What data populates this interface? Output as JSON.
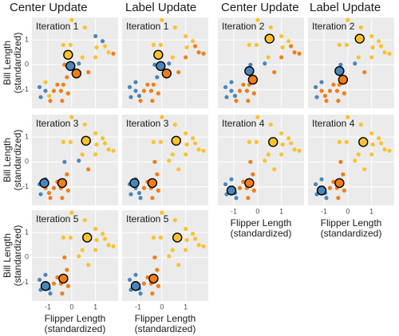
{
  "chart_data": {
    "type": "scatter",
    "column_titles": [
      "Center Update",
      "Label Update",
      "Center Update",
      "Label Update"
    ],
    "x_label": [
      "Flipper Length",
      "(standardized)"
    ],
    "y_label": [
      "Bill Length",
      "(standardized)"
    ],
    "xlim": [
      -1.67,
      1.95
    ],
    "ylim": [
      -1.75,
      1.9
    ],
    "xticks": [
      -1,
      0,
      1
    ],
    "yticks": [
      -1,
      0,
      1
    ],
    "grid": true,
    "colors": [
      "#4b86b9",
      "#ef7f1a",
      "#f9c22e"
    ],
    "points": {
      "x": [
        0.0,
        0.55,
        1.0,
        1.3,
        1.05,
        1.4,
        1.55,
        1.75,
        1.0,
        0.45,
        -0.35,
        -0.05,
        0.7,
        0.3,
        -0.3,
        -0.6,
        -0.35,
        -0.75,
        -0.45,
        -0.15,
        -0.9,
        -0.4,
        -0.2,
        -1.35,
        -1.1,
        -1.1,
        -1.3,
        -0.95
      ],
      "y": [
        1.8,
        1.5,
        1.15,
        0.95,
        0.7,
        0.75,
        0.5,
        0.45,
        0.3,
        0.3,
        0.8,
        0.8,
        -0.3,
        0.05,
        0.0,
        -0.8,
        -0.8,
        -1.05,
        -1.05,
        -1.15,
        -1.45,
        -1.45,
        -0.5,
        -0.9,
        -0.7,
        -1.05,
        -1.3,
        -1.25
      ]
    },
    "panels": [
      {
        "title": "Iteration 1",
        "labels": [
          2,
          2,
          0,
          0,
          2,
          2,
          2,
          1,
          2,
          2,
          2,
          2,
          1,
          0,
          1,
          1,
          1,
          1,
          1,
          1,
          1,
          1,
          1,
          0,
          2,
          0,
          0,
          2
        ],
        "centers": [
          [
            -0.05,
            -0.05
          ],
          [
            0.2,
            -0.35
          ],
          [
            -0.15,
            0.4
          ]
        ]
      },
      {
        "title": "Iteration 1",
        "labels": [
          2,
          2,
          2,
          2,
          2,
          1,
          1,
          1,
          1,
          2,
          2,
          2,
          1,
          0,
          0,
          1,
          1,
          1,
          1,
          1,
          1,
          1,
          0,
          0,
          0,
          0,
          0,
          0
        ],
        "centers": [
          [
            -0.05,
            -0.05
          ],
          [
            0.2,
            -0.35
          ],
          [
            -0.15,
            0.4
          ]
        ]
      },
      {
        "title": "Iteration 2",
        "labels": [
          2,
          2,
          2,
          2,
          2,
          1,
          1,
          1,
          1,
          2,
          2,
          2,
          1,
          0,
          0,
          1,
          1,
          1,
          1,
          1,
          1,
          1,
          0,
          0,
          0,
          0,
          0,
          0
        ],
        "centers": [
          [
            -0.35,
            -0.25
          ],
          [
            -0.2,
            -0.6
          ],
          [
            0.5,
            1.05
          ]
        ]
      },
      {
        "title": "Iteration 2",
        "labels": [
          2,
          2,
          2,
          2,
          2,
          2,
          2,
          2,
          2,
          2,
          2,
          2,
          1,
          0,
          0,
          1,
          1,
          1,
          1,
          1,
          1,
          1,
          1,
          0,
          0,
          1,
          0,
          1
        ],
        "centers": [
          [
            -0.35,
            -0.25
          ],
          [
            -0.2,
            -0.6
          ],
          [
            0.5,
            1.05
          ]
        ]
      },
      {
        "title": "Iteration 3",
        "labels": [
          2,
          2,
          2,
          2,
          2,
          2,
          2,
          2,
          2,
          2,
          2,
          2,
          1,
          0,
          0,
          1,
          1,
          1,
          1,
          1,
          1,
          1,
          1,
          0,
          0,
          1,
          0,
          1
        ],
        "centers": [
          [
            -1.15,
            -0.85
          ],
          [
            -0.4,
            -0.85
          ],
          [
            0.6,
            0.85
          ]
        ]
      },
      {
        "title": "Iteration 3",
        "labels": [
          2,
          2,
          2,
          2,
          2,
          2,
          2,
          2,
          2,
          2,
          2,
          2,
          2,
          2,
          1,
          1,
          1,
          1,
          1,
          1,
          0,
          1,
          1,
          0,
          0,
          0,
          0,
          0
        ],
        "centers": [
          [
            -1.15,
            -0.85
          ],
          [
            -0.4,
            -0.85
          ],
          [
            0.6,
            0.85
          ]
        ]
      },
      {
        "title": "Iteration 4",
        "labels": [
          2,
          2,
          2,
          2,
          2,
          2,
          2,
          2,
          2,
          2,
          2,
          2,
          2,
          2,
          1,
          1,
          1,
          1,
          1,
          1,
          0,
          1,
          1,
          0,
          0,
          0,
          0,
          0
        ],
        "centers": [
          [
            -1.1,
            -1.15
          ],
          [
            -0.35,
            -0.85
          ],
          [
            0.65,
            0.8
          ]
        ]
      },
      {
        "title": "Iteration 4",
        "labels": [
          2,
          2,
          2,
          2,
          2,
          2,
          2,
          2,
          2,
          2,
          2,
          2,
          2,
          2,
          1,
          1,
          1,
          1,
          1,
          1,
          0,
          1,
          1,
          0,
          0,
          0,
          0,
          0
        ],
        "centers": [
          [
            -1.1,
            -1.15
          ],
          [
            -0.35,
            -0.85
          ],
          [
            0.65,
            0.8
          ]
        ]
      },
      {
        "title": "Iteration 5",
        "labels": [
          2,
          2,
          2,
          2,
          2,
          2,
          2,
          2,
          2,
          2,
          2,
          2,
          2,
          2,
          1,
          1,
          1,
          1,
          1,
          1,
          0,
          1,
          1,
          0,
          0,
          0,
          0,
          0
        ],
        "centers": [
          [
            -1.1,
            -1.15
          ],
          [
            -0.35,
            -0.85
          ],
          [
            0.65,
            0.8
          ]
        ]
      },
      {
        "title": "Iteration 5",
        "labels": [
          2,
          2,
          2,
          2,
          2,
          2,
          2,
          2,
          2,
          2,
          2,
          2,
          2,
          2,
          1,
          1,
          1,
          1,
          1,
          1,
          0,
          1,
          1,
          0,
          0,
          0,
          0,
          0
        ],
        "centers": [
          [
            -1.1,
            -1.15
          ],
          [
            -0.35,
            -0.85
          ],
          [
            0.65,
            0.8
          ]
        ]
      }
    ]
  }
}
